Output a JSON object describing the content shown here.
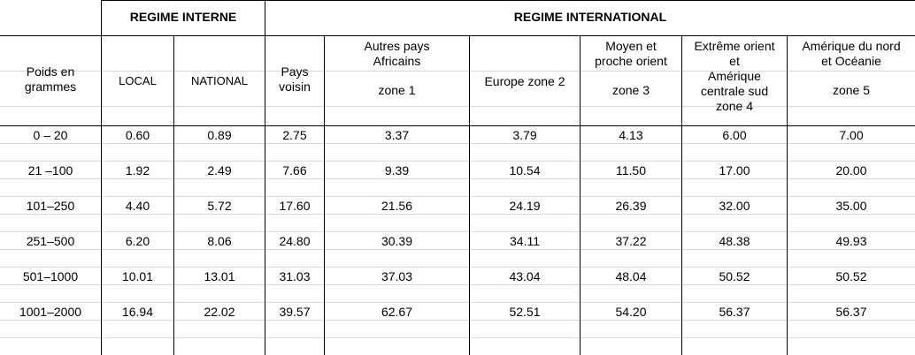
{
  "groups": {
    "interne": "REGIME INTERNE",
    "international": "REGIME INTERNATIONAL"
  },
  "headers": {
    "poids": [
      "Poids en",
      "grammes"
    ],
    "local": "LOCAL",
    "national": "NATIONAL",
    "pays_voisin": [
      "Pays",
      "voisin"
    ],
    "autres": [
      "Autres pays",
      "Africains",
      "zone 1"
    ],
    "europe": "Europe zone 2",
    "moyen": [
      "Moyen et",
      "proche orient",
      "zone 3"
    ],
    "extreme": [
      "Extrême orient",
      "et",
      "Amérique",
      "centrale sud",
      "zone 4"
    ],
    "amerique": [
      "Amérique du nord",
      "et Océanie",
      "zone 5"
    ]
  },
  "rows": [
    [
      "0 – 20",
      "0.60",
      "0.89",
      "2.75",
      "3.37",
      "3.79",
      "4.13",
      "6.00",
      "7.00"
    ],
    [
      "21 –100",
      "1.92",
      "2.49",
      "7.66",
      "9.39",
      "10.54",
      "11.50",
      "17.00",
      "20.00"
    ],
    [
      "101–250",
      "4.40",
      "5.72",
      "17.60",
      "21.56",
      "24.19",
      "26.39",
      "32.00",
      "35.00"
    ],
    [
      "251–500",
      "6.20",
      "8.06",
      "24.80",
      "30.39",
      "34.11",
      "37.22",
      "48.38",
      "49.93"
    ],
    [
      "501–1000",
      "10.01",
      "13.01",
      "31.03",
      "37.03",
      "43.04",
      "48.04",
      "50.52",
      "50.52"
    ],
    [
      "1001–2000",
      "16.94",
      "22.02",
      "39.57",
      "62.67",
      "52.51",
      "54.20",
      "56.37",
      "56.37"
    ]
  ]
}
